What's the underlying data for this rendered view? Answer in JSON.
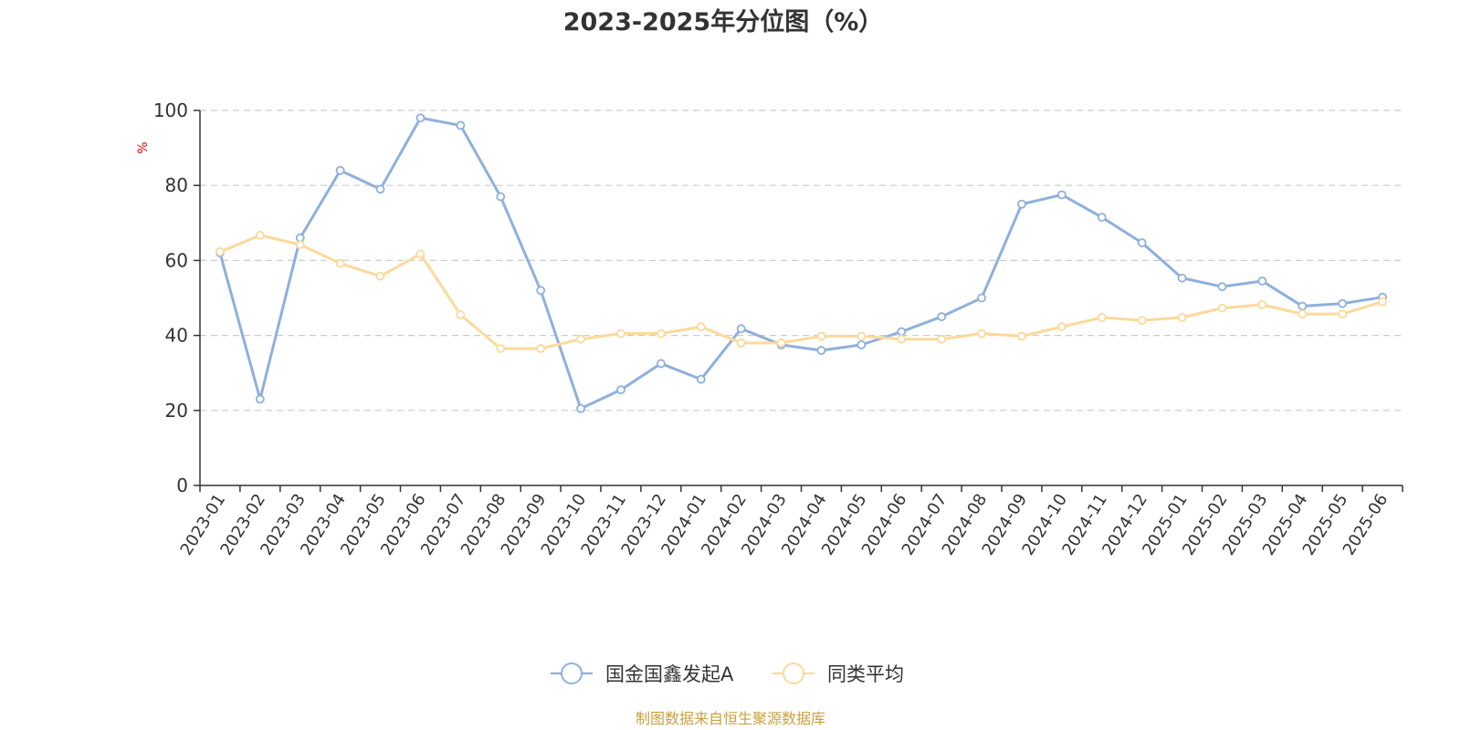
{
  "chart_data": {
    "type": "line",
    "title": "2023-2025年分位图（%）",
    "ylabel": "%",
    "ylim": [
      0,
      100
    ],
    "yticks": [
      "0",
      "20",
      "40",
      "60",
      "80",
      "100"
    ],
    "grid": true,
    "legend_placement": "bottom-center",
    "categories": [
      "2023-01",
      "2023-02",
      "2023-03",
      "2023-04",
      "2023-05",
      "2023-06",
      "2023-07",
      "2023-08",
      "2023-09",
      "2023-10",
      "2023-11",
      "2023-12",
      "2024-01",
      "2024-02",
      "2024-03",
      "2024-04",
      "2024-05",
      "2024-06",
      "2024-07",
      "2024-08",
      "2024-09",
      "2024-10",
      "2024-11",
      "2024-12",
      "2025-01",
      "2025-02",
      "2025-03",
      "2025-04",
      "2025-05",
      "2025-06"
    ],
    "series": [
      {
        "name": "国金国鑫发起A",
        "color": "#8eb0dc",
        "values": [
          62,
          23,
          66,
          84,
          79,
          98,
          96,
          77,
          52,
          20.5,
          25.5,
          32.5,
          28.3,
          41.8,
          37.5,
          36,
          37.5,
          41,
          45,
          50,
          75,
          77.5,
          71.5,
          64.7,
          55.3,
          53,
          54.5,
          47.8,
          48.5,
          50.2
        ]
      },
      {
        "name": "同类平均",
        "color": "#fcd99b",
        "values": [
          62.3,
          66.7,
          64.2,
          59.2,
          55.8,
          61.7,
          45.5,
          36.5,
          36.5,
          39,
          40.5,
          40.5,
          42.3,
          38,
          38,
          39.8,
          39.8,
          39,
          39,
          40.5,
          39.8,
          42.3,
          44.8,
          44,
          44.8,
          47.3,
          48.2,
          45.7,
          45.7,
          49
        ]
      }
    ]
  },
  "colors": {
    "axis": "#333333",
    "grid": "#cccccc",
    "unit_label": "#ee0000",
    "source_text": "#c8a040"
  },
  "source_note": "制图数据来自恒生聚源数据库"
}
